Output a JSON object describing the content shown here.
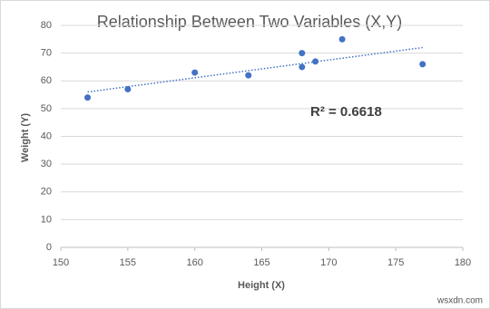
{
  "chart_data": {
    "type": "scatter",
    "title": "Relationship Between Two Variables (X,Y)",
    "x_label": "Height (X)",
    "y_label": "Weight (Y)",
    "series": [
      {
        "name": "Weight (Y)",
        "color": "#4472c4",
        "x": [
          152,
          155,
          160,
          164,
          168,
          168,
          169,
          171,
          177
        ],
        "values": [
          54,
          57,
          63,
          62,
          70,
          65,
          67,
          75,
          66
        ]
      }
    ],
    "trendline": {
      "x": [
        152,
        177
      ],
      "values": [
        56,
        72
      ],
      "color": "#4472c4",
      "label": "R² = 0.6618"
    },
    "xlim": [
      150,
      180
    ],
    "xticks": [
      150,
      155,
      160,
      165,
      170,
      175,
      180
    ],
    "ylim": [
      0,
      80
    ],
    "yticks": [
      0,
      10,
      20,
      30,
      40,
      50,
      60,
      70,
      80
    ],
    "grid": true,
    "watermark": "wsxdn.com"
  }
}
